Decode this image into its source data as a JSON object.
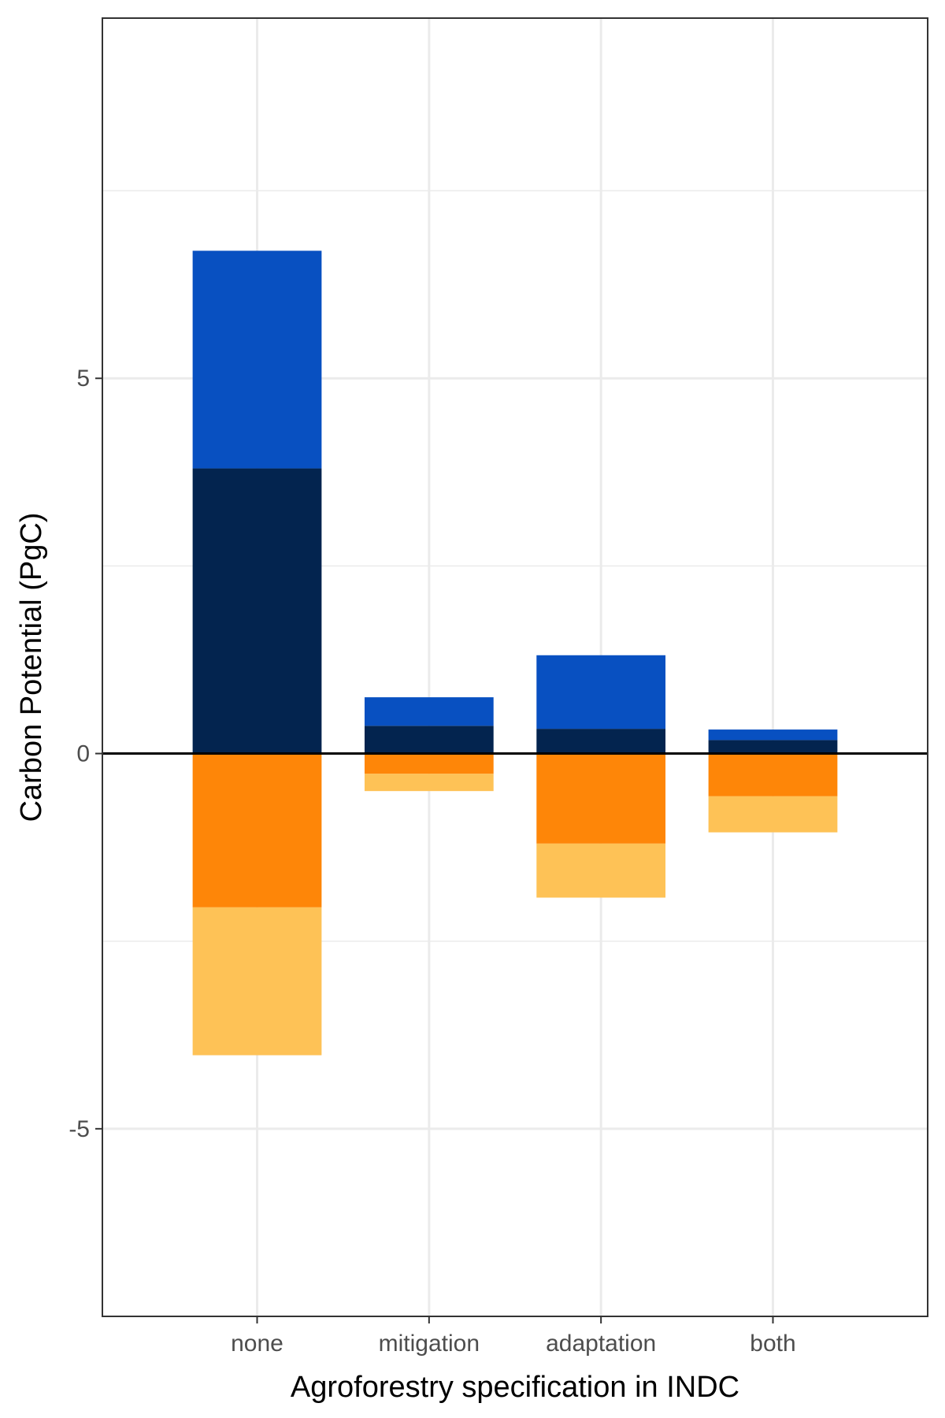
{
  "chart_data": {
    "type": "bar",
    "stacked": true,
    "title": "",
    "xlabel": "Agroforestry specification in INDC",
    "ylabel": "Carbon Potential (PgC)",
    "categories": [
      "none",
      "mitigation",
      "adaptation",
      "both"
    ],
    "ylim": [
      -7.5,
      9.8
    ],
    "yticks": [
      -5,
      0,
      5
    ],
    "ytick_labels": [
      "-5",
      "0",
      "5"
    ],
    "grid": true,
    "legend": "none",
    "zero_line": true,
    "series": [
      {
        "values": [
          3.8,
          0.37,
          0.33,
          0.18
        ],
        "color": "#03244f"
      },
      {
        "values": [
          2.9,
          0.38,
          0.98,
          0.14
        ],
        "color": "#0850c1"
      },
      {
        "values": [
          -2.05,
          -0.27,
          -1.2,
          -0.57
        ],
        "color": "#fe8608"
      },
      {
        "values": [
          -1.97,
          -0.23,
          -0.72,
          -0.48
        ],
        "color": "#fec256"
      }
    ]
  }
}
